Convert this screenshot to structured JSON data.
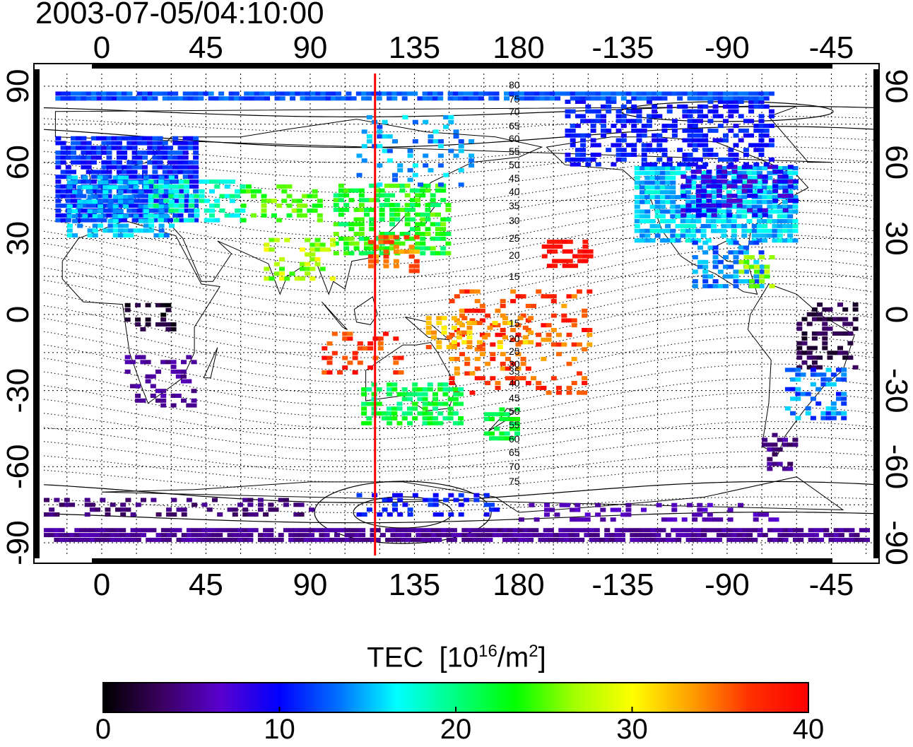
{
  "timestamp": "2003-07-05/04:10:00",
  "colorbar": {
    "title_main": "TEC",
    "title_unit_prefix": "[10",
    "title_unit_exp": "16",
    "title_unit_mid": "/m",
    "title_unit_exp2": "2",
    "title_unit_suffix": "]",
    "ticks": [
      "0",
      "10",
      "20",
      "30",
      "40"
    ],
    "range": [
      0,
      40
    ],
    "colors": [
      "#000000",
      "#3a0060",
      "#5a00d0",
      "#0000ff",
      "#0070ff",
      "#00ffff",
      "#00ff80",
      "#00ff00",
      "#a0ff00",
      "#ffff00",
      "#ffa000",
      "#ff3000",
      "#ff0000"
    ]
  },
  "map": {
    "lon_ticks_labels": [
      "0",
      "45",
      "90",
      "135",
      "180",
      "-135",
      "-90",
      "-45"
    ],
    "lon_ticks_values": [
      0,
      45,
      90,
      135,
      180,
      225,
      270,
      315
    ],
    "lat_ticks_labels": [
      "90",
      "60",
      "30",
      "0",
      "-30",
      "-60",
      "-90"
    ],
    "lat_ticks_values": [
      90,
      60,
      30,
      0,
      -30,
      -60,
      -90
    ],
    "lon_range": [
      -25,
      335
    ],
    "lat_range": [
      -95,
      95
    ],
    "terminator_longitude": 118,
    "terminator_color": "#ff0000"
  },
  "contour_labels": {
    "north": [
      "80",
      "75",
      "70",
      "65",
      "60",
      "55",
      "50",
      "45",
      "40",
      "35",
      "30",
      "25",
      "20",
      "15"
    ],
    "south": [
      "15",
      "20",
      "25",
      "30",
      "35",
      "40",
      "45",
      "50",
      "55",
      "60",
      "65",
      "70",
      "75"
    ]
  }
}
